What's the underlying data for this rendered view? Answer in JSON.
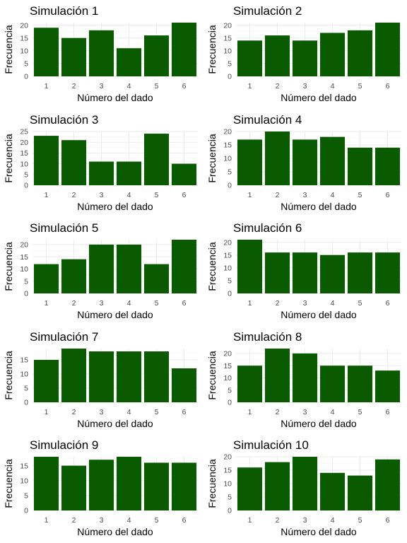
{
  "chart_data": [
    {
      "type": "bar",
      "title": "Simulación 1",
      "xlabel": "Número del dado",
      "ylabel": "Frecuencia",
      "categories": [
        "1",
        "2",
        "3",
        "4",
        "5",
        "6"
      ],
      "values": [
        19,
        15,
        18,
        11,
        16,
        21
      ],
      "ylim": [
        0,
        21
      ],
      "yticks": [
        0,
        5,
        10,
        15,
        20
      ],
      "grid": true,
      "color": "#0a5b00"
    },
    {
      "type": "bar",
      "title": "Simulación 2",
      "xlabel": "Número del dado",
      "ylabel": "Frecuencia",
      "categories": [
        "1",
        "2",
        "3",
        "4",
        "5",
        "6"
      ],
      "values": [
        14,
        16,
        14,
        17,
        18,
        21
      ],
      "ylim": [
        0,
        21
      ],
      "yticks": [
        0,
        5,
        10,
        15,
        20
      ],
      "grid": true,
      "color": "#0a5b00"
    },
    {
      "type": "bar",
      "title": "Simulación 3",
      "xlabel": "Número del dado",
      "ylabel": "Frecuencia",
      "categories": [
        "1",
        "2",
        "3",
        "4",
        "5",
        "6"
      ],
      "values": [
        23,
        21,
        11,
        11,
        24,
        10
      ],
      "ylim": [
        0,
        25
      ],
      "yticks": [
        0,
        5,
        10,
        15,
        20,
        25
      ],
      "grid": true,
      "color": "#0a5b00"
    },
    {
      "type": "bar",
      "title": "Simulación 4",
      "xlabel": "Número del dado",
      "ylabel": "Frecuencia",
      "categories": [
        "1",
        "2",
        "3",
        "4",
        "5",
        "6"
      ],
      "values": [
        17,
        20,
        17,
        18,
        14,
        14
      ],
      "ylim": [
        0,
        20
      ],
      "yticks": [
        0,
        5,
        10,
        15,
        20
      ],
      "grid": true,
      "color": "#0a5b00"
    },
    {
      "type": "bar",
      "title": "Simulación 5",
      "xlabel": "Número del dado",
      "ylabel": "Frecuencia",
      "categories": [
        "1",
        "2",
        "3",
        "4",
        "5",
        "6"
      ],
      "values": [
        12,
        14,
        20,
        20,
        12,
        22
      ],
      "ylim": [
        0,
        22
      ],
      "yticks": [
        0,
        5,
        10,
        15,
        20
      ],
      "grid": true,
      "color": "#0a5b00"
    },
    {
      "type": "bar",
      "title": "Simulación 6",
      "xlabel": "Número del dado",
      "ylabel": "Frecuencia",
      "categories": [
        "1",
        "2",
        "3",
        "4",
        "5",
        "6"
      ],
      "values": [
        21,
        16,
        16,
        15,
        16,
        16
      ],
      "ylim": [
        0,
        21
      ],
      "yticks": [
        0,
        5,
        10,
        15,
        20
      ],
      "grid": true,
      "color": "#0a5b00"
    },
    {
      "type": "bar",
      "title": "Simulación 7",
      "xlabel": "Número del dado",
      "ylabel": "Frecuencia",
      "categories": [
        "1",
        "2",
        "3",
        "4",
        "5",
        "6"
      ],
      "values": [
        15,
        19,
        18,
        18,
        18,
        12
      ],
      "ylim": [
        0,
        19
      ],
      "yticks": [
        0,
        5,
        10,
        15
      ],
      "grid": true,
      "color": "#0a5b00"
    },
    {
      "type": "bar",
      "title": "Simulación 8",
      "xlabel": "Número del dado",
      "ylabel": "Frecuencia",
      "categories": [
        "1",
        "2",
        "3",
        "4",
        "5",
        "6"
      ],
      "values": [
        15,
        22,
        20,
        15,
        15,
        13
      ],
      "ylim": [
        0,
        22
      ],
      "yticks": [
        0,
        5,
        10,
        15,
        20
      ],
      "grid": true,
      "color": "#0a5b00"
    },
    {
      "type": "bar",
      "title": "Simulación 9",
      "xlabel": "Número del dado",
      "ylabel": "Frecuencia",
      "categories": [
        "1",
        "2",
        "3",
        "4",
        "5",
        "6"
      ],
      "values": [
        18,
        15,
        17,
        18,
        16,
        16
      ],
      "ylim": [
        0,
        18
      ],
      "yticks": [
        0,
        5,
        10,
        15
      ],
      "grid": true,
      "color": "#0a5b00"
    },
    {
      "type": "bar",
      "title": "Simulación 10",
      "xlabel": "Número del dado",
      "ylabel": "Frecuencia",
      "categories": [
        "1",
        "2",
        "3",
        "4",
        "5",
        "6"
      ],
      "values": [
        16,
        18,
        20,
        14,
        13,
        19
      ],
      "ylim": [
        0,
        20
      ],
      "yticks": [
        0,
        5,
        10,
        15,
        20
      ],
      "grid": true,
      "color": "#0a5b00"
    }
  ]
}
